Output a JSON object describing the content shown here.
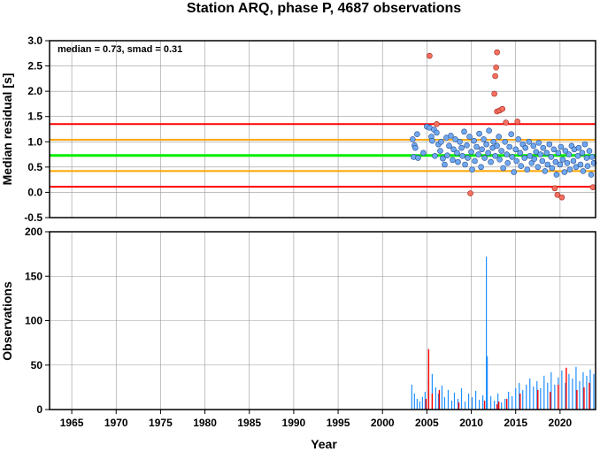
{
  "title": "Station ARQ, phase P, 4687 observations",
  "colors": {
    "median_line": "#00ee00",
    "smad_line": "#ffa500",
    "threshold_line": "#ff0000",
    "point_fill": "#6fa8f0",
    "outlier_fill": "#f87060",
    "bar_normal": "#1e90ff",
    "bar_highlight": "#ff0000",
    "grid": "#999999"
  },
  "chart_data": [
    {
      "type": "scatter",
      "name": "residuals",
      "annotation": "median = 0.73, smad = 0.31",
      "ylabel": "Median residual [s]",
      "xlabel": "",
      "xlim": [
        1962.5,
        2024.0
      ],
      "ylim": [
        -0.5,
        3.0
      ],
      "yticks": [
        "-0.5",
        "0.0",
        "0.5",
        "1.0",
        "1.5",
        "2.0",
        "2.5",
        "3.0"
      ],
      "grid": true,
      "hlines": [
        {
          "y": 0.73,
          "role": "median",
          "color": "#00ee00"
        },
        {
          "y": 1.04,
          "role": "median_plus_smad",
          "color": "#ffa500"
        },
        {
          "y": 0.42,
          "role": "median_minus_smad",
          "color": "#ffa500"
        },
        {
          "y": 1.35,
          "role": "upper_threshold",
          "color": "#ff0000"
        },
        {
          "y": 0.11,
          "role": "lower_threshold",
          "color": "#ff0000"
        }
      ],
      "normal_points": [
        [
          2003.4,
          1.05
        ],
        [
          2003.5,
          0.7
        ],
        [
          2003.6,
          0.93
        ],
        [
          2003.7,
          0.88
        ],
        [
          2003.9,
          1.15
        ],
        [
          2004.0,
          0.68
        ],
        [
          2004.6,
          0.78
        ],
        [
          2005.0,
          1.3
        ],
        [
          2005.3,
          1.28
        ],
        [
          2005.5,
          1.1
        ],
        [
          2005.6,
          1.02
        ],
        [
          2005.8,
          1.24
        ],
        [
          2005.9,
          0.72
        ],
        [
          2006.1,
          1.18
        ],
        [
          2006.3,
          0.95
        ],
        [
          2006.5,
          0.82
        ],
        [
          2006.6,
          1.0
        ],
        [
          2006.8,
          0.67
        ],
        [
          2007.0,
          0.55
        ],
        [
          2007.2,
          1.08
        ],
        [
          2007.3,
          0.73
        ],
        [
          2007.5,
          0.92
        ],
        [
          2007.7,
          1.12
        ],
        [
          2007.9,
          0.64
        ],
        [
          2008.0,
          0.85
        ],
        [
          2008.2,
          1.05
        ],
        [
          2008.4,
          0.78
        ],
        [
          2008.5,
          0.6
        ],
        [
          2008.7,
          1.0
        ],
        [
          2008.9,
          0.88
        ],
        [
          2009.0,
          0.72
        ],
        [
          2009.2,
          1.2
        ],
        [
          2009.3,
          0.55
        ],
        [
          2009.5,
          0.93
        ],
        [
          2009.6,
          0.68
        ],
        [
          2009.8,
          1.1
        ],
        [
          2010.0,
          0.8
        ],
        [
          2010.1,
          0.45
        ],
        [
          2010.3,
          1.02
        ],
        [
          2010.4,
          0.62
        ],
        [
          2010.6,
          0.9
        ],
        [
          2010.8,
          0.75
        ],
        [
          2010.9,
          1.16
        ],
        [
          2011.1,
          0.5
        ],
        [
          2011.2,
          0.85
        ],
        [
          2011.4,
          1.05
        ],
        [
          2011.5,
          0.68
        ],
        [
          2011.7,
          0.95
        ],
        [
          2011.9,
          0.78
        ],
        [
          2012.0,
          1.22
        ],
        [
          2012.2,
          0.6
        ],
        [
          2012.4,
          0.88
        ],
        [
          2012.5,
          1.0
        ],
        [
          2012.7,
          0.72
        ],
        [
          2012.9,
          0.92
        ],
        [
          2013.1,
          1.1
        ],
        [
          2013.2,
          0.65
        ],
        [
          2013.4,
          0.82
        ],
        [
          2013.6,
          0.48
        ],
        [
          2013.8,
          1.0
        ],
        [
          2014.0,
          0.75
        ],
        [
          2014.1,
          0.58
        ],
        [
          2014.3,
          0.9
        ],
        [
          2014.5,
          1.15
        ],
        [
          2014.6,
          0.7
        ],
        [
          2014.8,
          0.4
        ],
        [
          2015.0,
          0.85
        ],
        [
          2015.1,
          0.62
        ],
        [
          2015.3,
          1.05
        ],
        [
          2015.5,
          0.78
        ],
        [
          2015.6,
          0.52
        ],
        [
          2015.8,
          0.95
        ],
        [
          2016.0,
          0.68
        ],
        [
          2016.1,
          0.88
        ],
        [
          2016.3,
          0.45
        ],
        [
          2016.5,
          1.0
        ],
        [
          2016.6,
          0.72
        ],
        [
          2016.8,
          0.58
        ],
        [
          2017.0,
          0.92
        ],
        [
          2017.1,
          0.66
        ],
        [
          2017.3,
          0.8
        ],
        [
          2017.5,
          0.5
        ],
        [
          2017.6,
          0.98
        ],
        [
          2017.8,
          0.75
        ],
        [
          2018.0,
          0.62
        ],
        [
          2018.1,
          0.88
        ],
        [
          2018.3,
          0.42
        ],
        [
          2018.5,
          0.78
        ],
        [
          2018.6,
          0.55
        ],
        [
          2018.8,
          0.95
        ],
        [
          2019.0,
          0.7
        ],
        [
          2019.1,
          0.48
        ],
        [
          2019.3,
          0.85
        ],
        [
          2019.5,
          0.6
        ],
        [
          2019.6,
          0.35
        ],
        [
          2019.8,
          0.78
        ],
        [
          2020.0,
          0.55
        ],
        [
          2020.1,
          0.9
        ],
        [
          2020.3,
          0.65
        ],
        [
          2020.5,
          0.4
        ],
        [
          2020.6,
          0.82
        ],
        [
          2020.8,
          0.58
        ],
        [
          2021.0,
          0.75
        ],
        [
          2021.1,
          0.45
        ],
        [
          2021.3,
          0.92
        ],
        [
          2021.5,
          0.62
        ],
        [
          2021.6,
          0.85
        ],
        [
          2021.8,
          0.5
        ],
        [
          2022.0,
          0.72
        ],
        [
          2022.1,
          0.88
        ],
        [
          2022.3,
          0.55
        ],
        [
          2022.5,
          0.78
        ],
        [
          2022.6,
          0.42
        ],
        [
          2022.8,
          0.95
        ],
        [
          2023.0,
          0.68
        ],
        [
          2023.1,
          0.52
        ],
        [
          2023.3,
          0.82
        ],
        [
          2023.5,
          0.35
        ],
        [
          2023.6,
          0.7
        ],
        [
          2023.8,
          0.58
        ]
      ],
      "outlier_points": [
        [
          2005.3,
          2.7
        ],
        [
          2006.1,
          1.35
        ],
        [
          2009.9,
          -0.02
        ],
        [
          2012.8,
          2.47
        ],
        [
          2012.9,
          2.77
        ],
        [
          2012.7,
          2.3
        ],
        [
          2012.6,
          1.95
        ],
        [
          2012.9,
          1.6
        ],
        [
          2013.2,
          1.62
        ],
        [
          2013.5,
          1.65
        ],
        [
          2013.9,
          1.38
        ],
        [
          2015.2,
          1.4
        ],
        [
          2019.4,
          0.08
        ],
        [
          2019.7,
          -0.05
        ],
        [
          2020.2,
          -0.1
        ],
        [
          2023.7,
          0.1
        ]
      ]
    },
    {
      "type": "bar",
      "name": "observations",
      "ylabel": "Observations",
      "xlabel": "Year",
      "xlim": [
        1962.5,
        2024.0
      ],
      "ylim": [
        0,
        200
      ],
      "yticks": [
        "0",
        "50",
        "100",
        "150",
        "200"
      ],
      "xticks": [
        "1965",
        "1970",
        "1975",
        "1980",
        "1985",
        "1990",
        "1995",
        "2000",
        "2005",
        "2010",
        "2015",
        "2020"
      ],
      "grid": true,
      "bars_normal": [
        [
          2003.3,
          28
        ],
        [
          2003.6,
          18
        ],
        [
          2003.9,
          12
        ],
        [
          2004.2,
          9
        ],
        [
          2004.5,
          14
        ],
        [
          2004.8,
          20
        ],
        [
          2005.2,
          35
        ],
        [
          2005.6,
          40
        ],
        [
          2006.0,
          25
        ],
        [
          2006.3,
          18
        ],
        [
          2006.7,
          27
        ],
        [
          2007.0,
          14
        ],
        [
          2007.4,
          22
        ],
        [
          2007.8,
          10
        ],
        [
          2008.1,
          19
        ],
        [
          2008.5,
          12
        ],
        [
          2008.9,
          24
        ],
        [
          2009.3,
          9
        ],
        [
          2009.7,
          18
        ],
        [
          2010.1,
          14
        ],
        [
          2010.5,
          21
        ],
        [
          2010.9,
          11
        ],
        [
          2011.3,
          16
        ],
        [
          2011.7,
          172
        ],
        [
          2011.8,
          60
        ],
        [
          2012.2,
          15
        ],
        [
          2012.6,
          10
        ],
        [
          2013.0,
          18
        ],
        [
          2013.4,
          8
        ],
        [
          2013.8,
          12
        ],
        [
          2014.2,
          20
        ],
        [
          2014.6,
          15
        ],
        [
          2015.0,
          24
        ],
        [
          2015.4,
          30
        ],
        [
          2015.8,
          22
        ],
        [
          2016.2,
          28
        ],
        [
          2016.6,
          35
        ],
        [
          2017.0,
          26
        ],
        [
          2017.4,
          32
        ],
        [
          2017.8,
          24
        ],
        [
          2018.2,
          38
        ],
        [
          2018.6,
          30
        ],
        [
          2019.0,
          42
        ],
        [
          2019.4,
          28
        ],
        [
          2019.8,
          36
        ],
        [
          2020.2,
          44
        ],
        [
          2020.6,
          30
        ],
        [
          2021.0,
          40
        ],
        [
          2021.4,
          35
        ],
        [
          2021.8,
          48
        ],
        [
          2022.2,
          32
        ],
        [
          2022.6,
          42
        ],
        [
          2023.0,
          38
        ],
        [
          2023.4,
          45
        ],
        [
          2023.8,
          40
        ]
      ],
      "bars_highlight": [
        [
          2004.9,
          12
        ],
        [
          2005.2,
          68
        ],
        [
          2005.6,
          18
        ],
        [
          2006.4,
          22
        ],
        [
          2008.6,
          8
        ],
        [
          2011.5,
          10
        ],
        [
          2012.9,
          6
        ],
        [
          2013.1,
          9
        ],
        [
          2014.0,
          12
        ],
        [
          2015.5,
          18
        ],
        [
          2017.5,
          22
        ],
        [
          2018.9,
          20
        ],
        [
          2019.8,
          28
        ],
        [
          2020.7,
          47
        ],
        [
          2021.9,
          22
        ],
        [
          2022.7,
          25
        ],
        [
          2023.3,
          30
        ]
      ]
    }
  ]
}
